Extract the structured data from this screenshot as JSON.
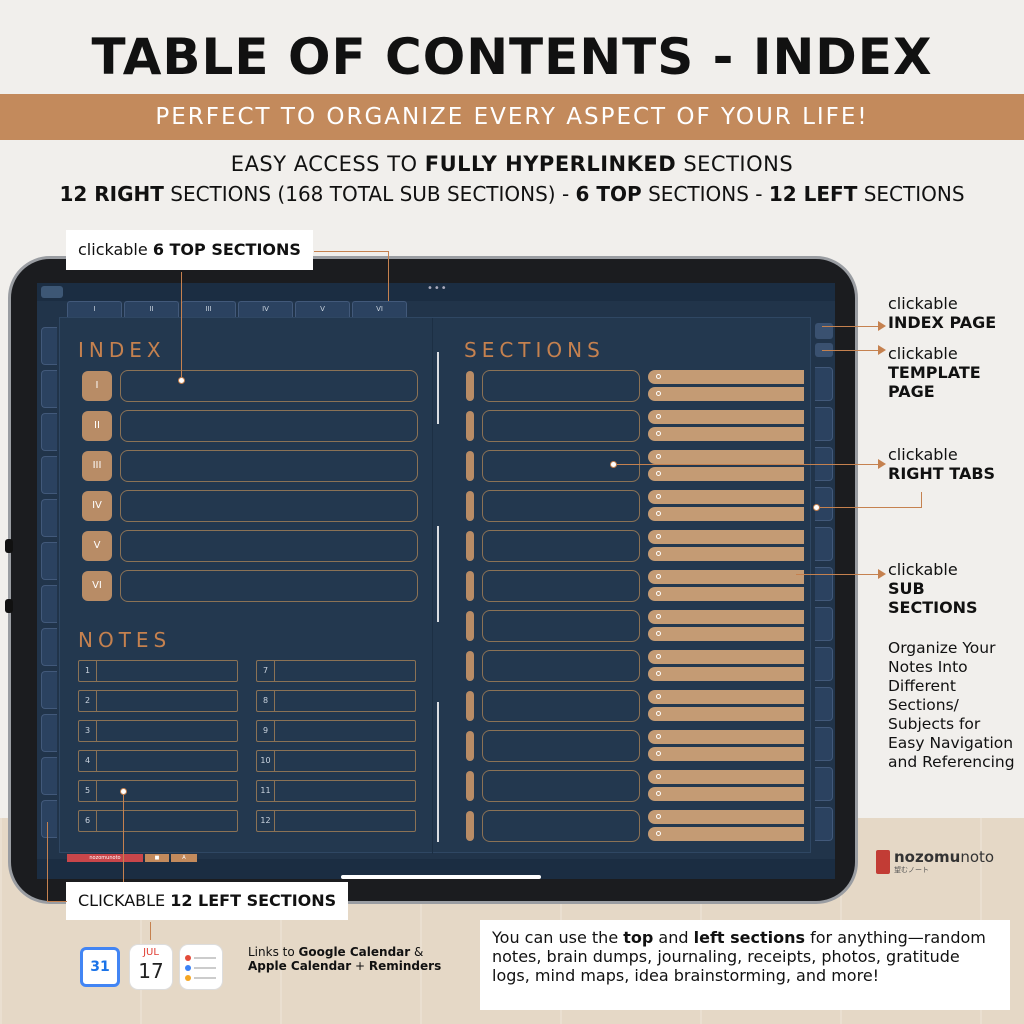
{
  "header": {
    "title": "TABLE OF CONTENTS - INDEX",
    "banner": "PERFECT TO ORGANIZE EVERY ASPECT OF YOUR LIFE!",
    "line1_a": "EASY ACCESS TO ",
    "line1_b": "FULLY HYPERLINKED",
    "line1_c": " SECTIONS",
    "line2_a": "12 RIGHT",
    "line2_b": " SECTIONS (168 TOTAL SUB SECTIONS) - ",
    "line2_c": "6 TOP",
    "line2_d": " SECTIONS - ",
    "line2_e": "12 LEFT",
    "line2_f": " SECTIONS"
  },
  "planner": {
    "top_tabs": [
      "I",
      "II",
      "III",
      "IV",
      "V",
      "VI"
    ],
    "index_heading": "INDEX",
    "index_items": [
      "I",
      "II",
      "III",
      "IV",
      "V",
      "VI"
    ],
    "notes_heading": "NOTES",
    "notes_left": [
      "1",
      "2",
      "3",
      "4",
      "5",
      "6"
    ],
    "notes_right": [
      "7",
      "8",
      "9",
      "10",
      "11",
      "12"
    ],
    "sections_heading": "SECTIONS",
    "bottom_tabs": [
      "nozomunoto",
      "■",
      "A"
    ]
  },
  "callouts": {
    "top_a": "clickable ",
    "top_b": "6 TOP SECTIONS",
    "left_a": "CLICKABLE ",
    "left_b": "12 LEFT SECTIONS",
    "index_page_a": "clickable",
    "index_page_b": "INDEX PAGE",
    "template_a": "clickable",
    "template_b": "TEMPLATE",
    "template_c": "PAGE",
    "right_tabs_a": "clickable",
    "right_tabs_b": "RIGHT TABS",
    "sub_a": "clickable",
    "sub_b": "SUB",
    "sub_c": "SECTIONS",
    "description": "Organize Your Notes Into Different Sections/ Subjects for Easy Navigation and Referencing"
  },
  "brand": {
    "name_a": "nozomu",
    "name_b": "noto",
    "sub": "望むノート"
  },
  "apps": {
    "google_day": "31",
    "apple_month": "JUL",
    "apple_day": "17",
    "links_a": "Links to ",
    "links_b": "Google Calendar",
    "links_c": " & ",
    "links_d": "Apple Calendar",
    "links_e": " + ",
    "links_f": "Reminders"
  },
  "footer": {
    "a": "You can use the ",
    "b": "top",
    "c": " and ",
    "d": "left sections",
    "e": " for anything—random notes, brain dumps, journaling, receipts, photos, gratitude logs, mind maps, idea brainstorming, and more!"
  },
  "colors": {
    "accent": "#c38a5c",
    "planner_bg": "#23384f",
    "tab_tan": "#b88c66"
  }
}
